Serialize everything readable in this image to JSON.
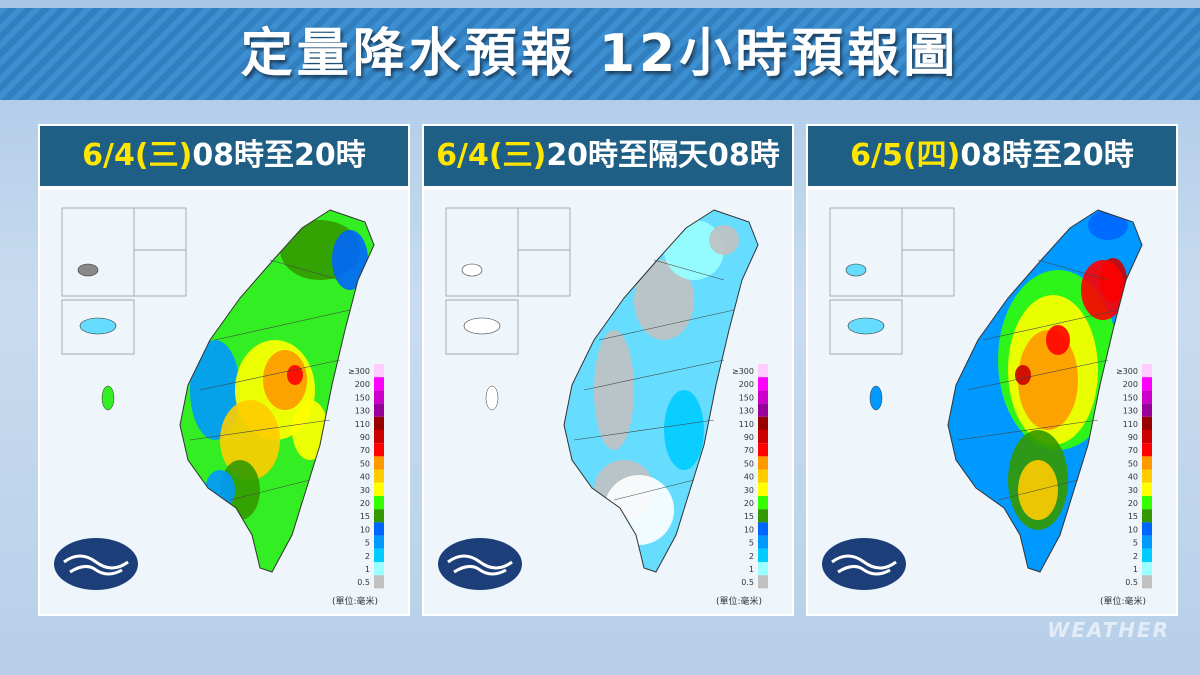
{
  "header": {
    "title": "定量降水預報 12小時預報圖"
  },
  "panels": [
    {
      "date": "6/4(三)",
      "period": "08時至20時"
    },
    {
      "date": "6/4(三)",
      "period": "20時至隔天08時"
    },
    {
      "date": "6/5(四)",
      "period": "08時至20時"
    }
  ],
  "legend": {
    "levels": [
      {
        "label": "≥300",
        "color": "#ffccff"
      },
      {
        "label": "200",
        "color": "#ff00ff"
      },
      {
        "label": "150",
        "color": "#cc00cc"
      },
      {
        "label": "130",
        "color": "#990099"
      },
      {
        "label": "110",
        "color": "#990000"
      },
      {
        "label": "90",
        "color": "#cc0000"
      },
      {
        "label": "70",
        "color": "#ff0000"
      },
      {
        "label": "50",
        "color": "#ff9900"
      },
      {
        "label": "40",
        "color": "#ffcc00"
      },
      {
        "label": "30",
        "color": "#ffff00"
      },
      {
        "label": "20",
        "color": "#33ff00"
      },
      {
        "label": "15",
        "color": "#339900"
      },
      {
        "label": "10",
        "color": "#0066ff"
      },
      {
        "label": "5",
        "color": "#0099ff"
      },
      {
        "label": "2",
        "color": "#00ccff"
      },
      {
        "label": "1",
        "color": "#99ffff"
      },
      {
        "label": "0.5",
        "color": "#c1c1c1"
      }
    ],
    "unit": "(單位:毫米)"
  },
  "watermark": "WEATHER"
}
